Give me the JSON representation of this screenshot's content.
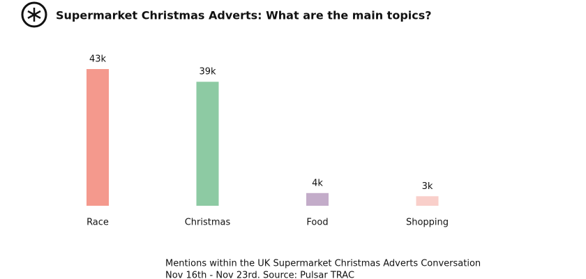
{
  "chart_data": {
    "type": "bar",
    "title": "Supermarket Christmas Adverts: What are the main topics?",
    "categories": [
      "Race",
      "Christmas",
      "Food",
      "Shopping"
    ],
    "values": [
      43000,
      39000,
      4000,
      3000
    ],
    "value_labels": [
      "43k",
      "39k",
      "4k",
      "3k"
    ],
    "colors": [
      "#f4998d",
      "#8dcaa3",
      "#c3acc9",
      "#f9cfca"
    ],
    "footnotes": [
      "Mentions within the UK Supermarket Christmas Adverts Conversation",
      "Nov 16th - Nov 23rd. Source: Pulsar TRAC"
    ]
  }
}
